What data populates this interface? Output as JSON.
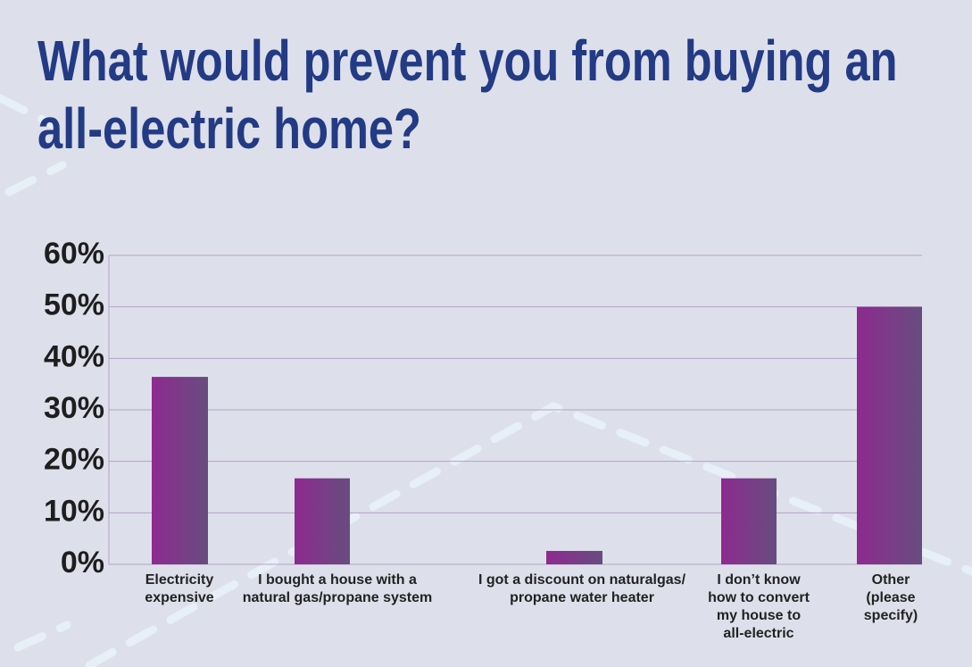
{
  "chart_data": {
    "type": "bar",
    "title": "What would prevent you from buying an\nall-electric home?",
    "categories": [
      "Electricity\nexpensive",
      "I bought a house with a\nnatural gas/propane system",
      "I got a discount on naturalgas/\npropane water heater",
      "I don’t know\nhow to convert\nmy house to\nall-electric",
      "Other\n(please\nspecify)"
    ],
    "values": [
      36.4,
      16.7,
      2.6,
      16.7,
      50
    ],
    "color": "#7e3a8c",
    "ylim": [
      0,
      60
    ],
    "yticks": [
      {
        "value": 0,
        "label": "0%"
      },
      {
        "value": 10,
        "label": "10%"
      },
      {
        "value": 20,
        "label": "20%"
      },
      {
        "value": 30,
        "label": "30%"
      },
      {
        "value": 40,
        "label": "40%"
      },
      {
        "value": 50,
        "label": "50%"
      },
      {
        "value": 60,
        "label": "60%"
      }
    ],
    "grid": true
  }
}
